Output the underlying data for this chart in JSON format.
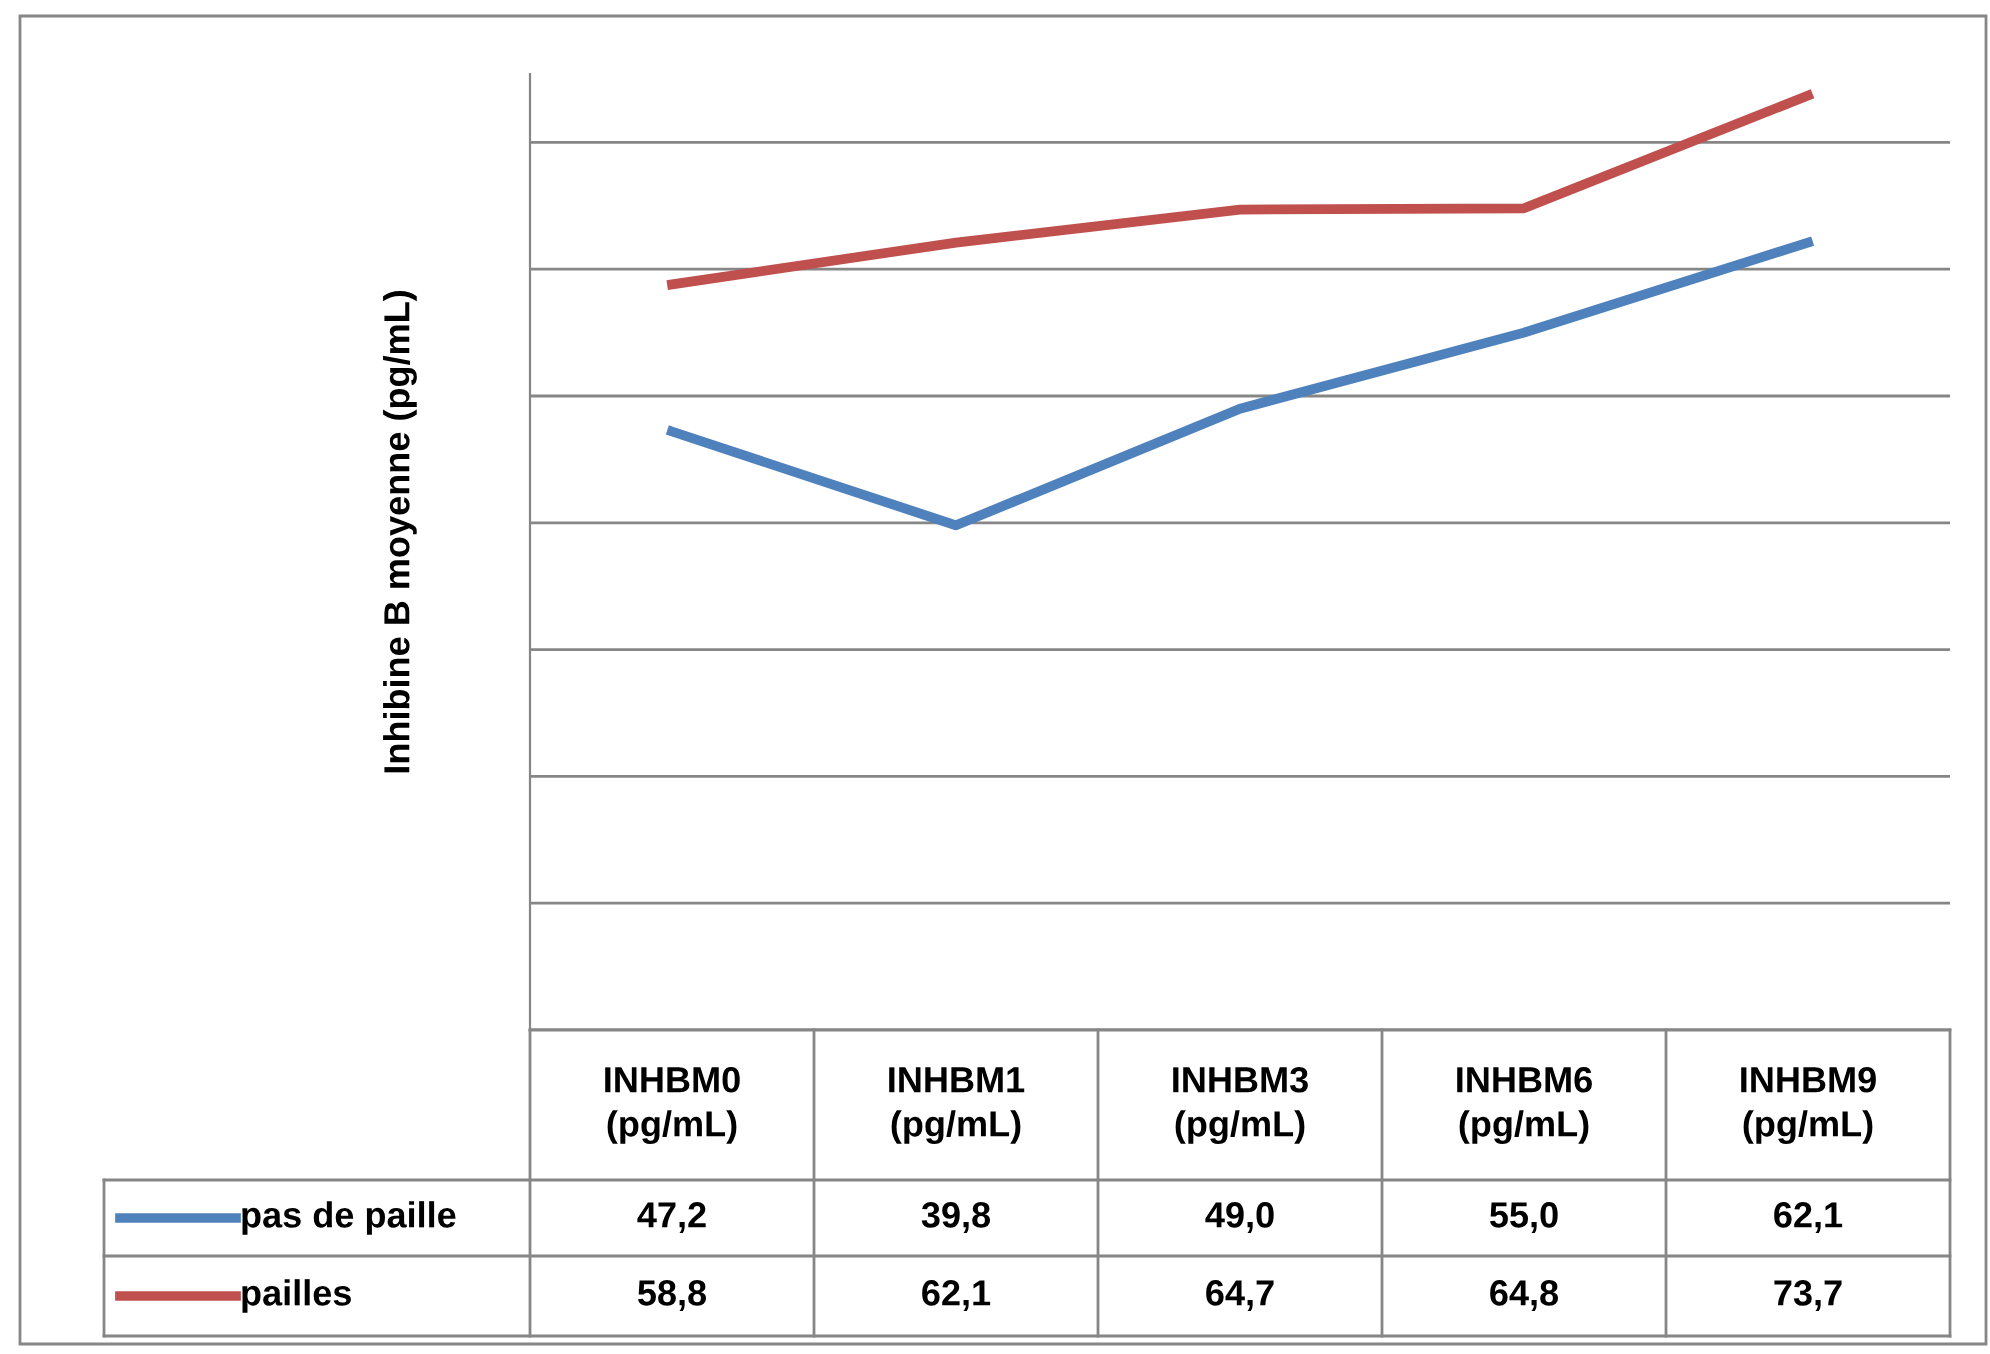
{
  "chart_data": {
    "type": "line",
    "ylabel": "Inhibine B moyenne (pg/mL)",
    "categories": [
      "INHBM0 (pg/mL)",
      "INHBM1 (pg/mL)",
      "INHBM3 (pg/mL)",
      "INHBM6 (pg/mL)",
      "INHBM9 (pg/mL)"
    ],
    "series": [
      {
        "name": "pas de paille",
        "color": "#4f81bd",
        "values": [
          47.2,
          39.8,
          49.0,
          55.0,
          62.1
        ],
        "value_labels": [
          "47,2",
          "39,8",
          "49,0",
          "55,0",
          "62,1"
        ]
      },
      {
        "name": "pailles",
        "color": "#c0504d",
        "values": [
          58.8,
          62.1,
          64.7,
          64.8,
          73.7
        ],
        "value_labels": [
          "58,8",
          "62,1",
          "64,7",
          "64,8",
          "73,7"
        ]
      }
    ],
    "grid": "y",
    "legend": "bottom left",
    "marker": "none",
    "line_style": "solid",
    "tick_labels": false
  }
}
